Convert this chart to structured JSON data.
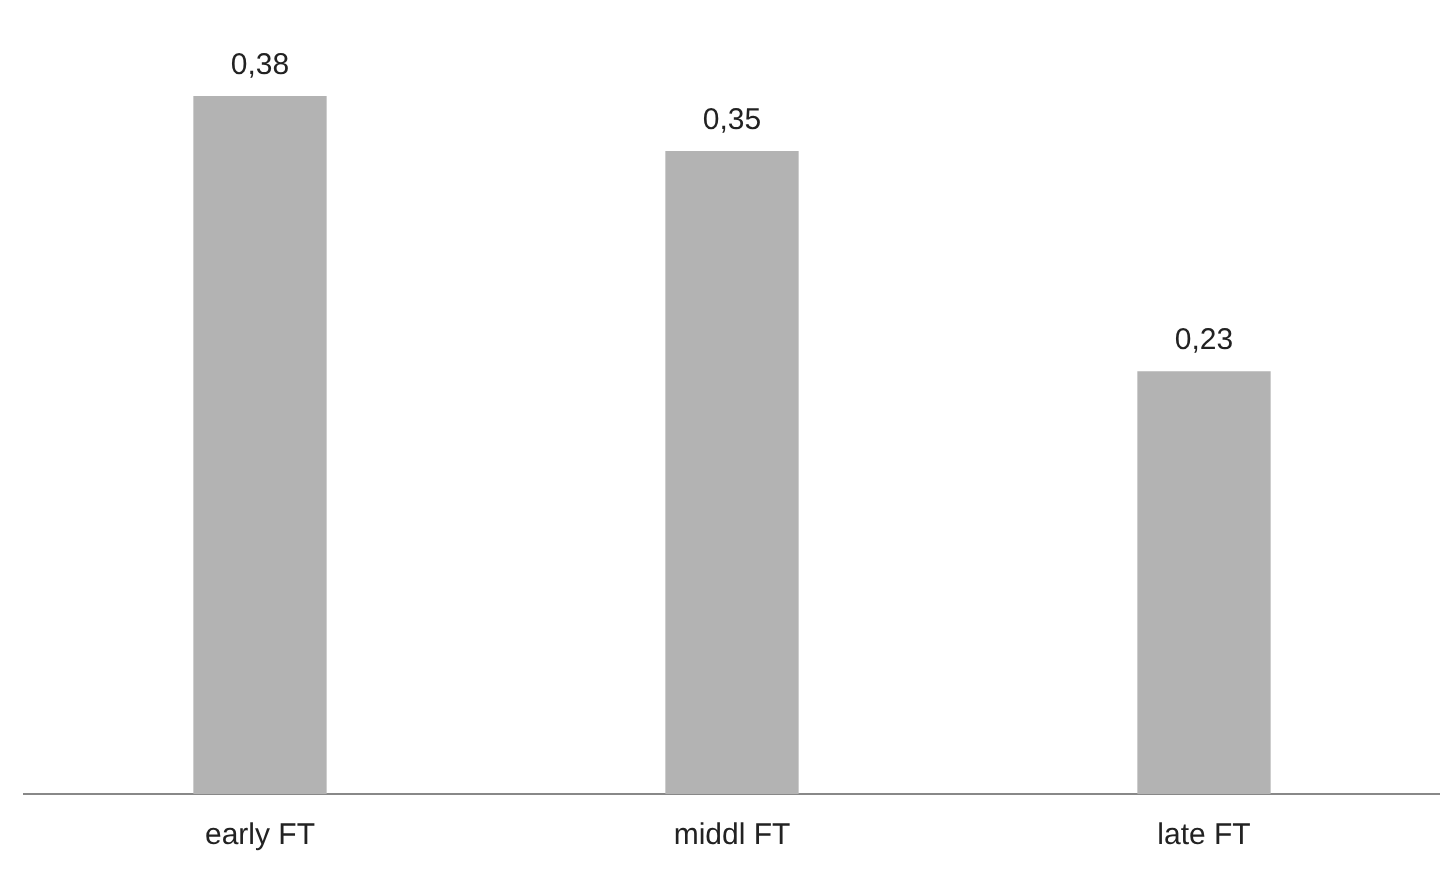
{
  "chart_data": {
    "type": "bar",
    "categories": [
      "early FT",
      "middl FT",
      "late FT"
    ],
    "values": [
      0.38,
      0.35,
      0.23
    ],
    "color": "#b3b3b3",
    "value_labels": [
      "0,38",
      "0,35",
      "0,23"
    ],
    "grid": false,
    "legend": false,
    "tick_labels": "x"
  }
}
